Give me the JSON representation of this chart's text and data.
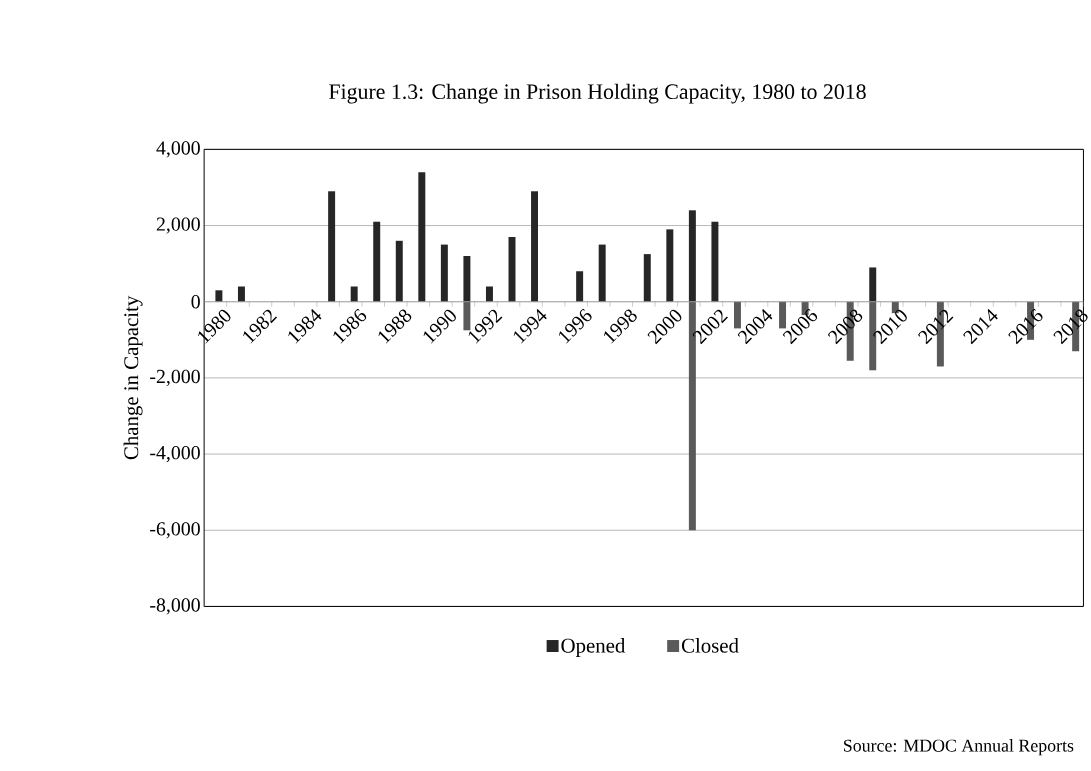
{
  "chart_data": {
    "type": "bar",
    "title": "Figure 1.3: Change in Prison Holding Capacity, 1980 to 2018",
    "ylabel": "Change in Capacity",
    "categories": [
      "1980",
      null,
      "1982",
      null,
      "1984",
      null,
      "1986",
      null,
      "1988",
      null,
      "1990",
      null,
      "1992",
      null,
      "1994",
      null,
      "1996",
      null,
      "1998",
      null,
      "2000",
      null,
      "2002",
      null,
      "2004",
      null,
      "2006",
      null,
      "2008",
      null,
      "2010",
      null,
      "2012",
      null,
      "2014",
      null,
      "2016",
      null,
      "2018"
    ],
    "series": [
      {
        "name": "Opened",
        "color": "#262626",
        "values": [
          300,
          400,
          null,
          null,
          null,
          2900,
          400,
          2100,
          1600,
          3400,
          1500,
          1200,
          400,
          1700,
          2900,
          null,
          800,
          1500,
          null,
          1250,
          1900,
          2400,
          2100,
          null,
          null,
          null,
          null,
          null,
          null,
          900,
          null,
          null,
          null,
          null,
          null,
          null,
          null,
          null,
          null
        ]
      },
      {
        "name": "Closed",
        "color": "#5a5a5a",
        "values": [
          null,
          null,
          null,
          null,
          null,
          null,
          null,
          null,
          null,
          null,
          null,
          -750,
          null,
          null,
          null,
          null,
          null,
          null,
          null,
          null,
          null,
          -6000,
          null,
          -700,
          null,
          -700,
          -350,
          null,
          -1550,
          -1800,
          -300,
          null,
          -1700,
          null,
          null,
          null,
          -1000,
          null,
          -1300
        ]
      }
    ],
    "ylim": [
      -8000,
      4000
    ],
    "yticks": [
      {
        "value": -8000,
        "label": "-8,000"
      },
      {
        "value": -6000,
        "label": "-6,000"
      },
      {
        "value": -4000,
        "label": "-4,000"
      },
      {
        "value": -2000,
        "label": "-2,000"
      },
      {
        "value": 0,
        "label": "0"
      },
      {
        "value": 2000,
        "label": "2,000"
      },
      {
        "value": 4000,
        "label": "4,000"
      }
    ],
    "grid": "y",
    "legend": "bottom",
    "annotations": [
      "Source: MDOC Annual Reports"
    ]
  }
}
